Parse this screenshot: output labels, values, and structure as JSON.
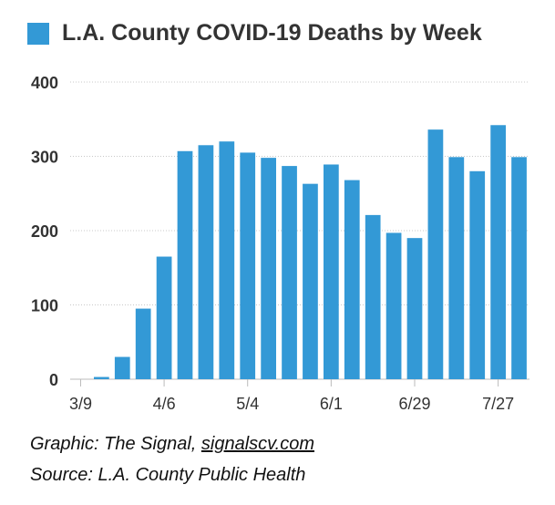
{
  "chart_data": {
    "type": "bar",
    "title": "",
    "legend": {
      "entries": [
        "L.A. County COVID-19 Deaths by Week"
      ],
      "placement": "top-left"
    },
    "series": [
      {
        "name": "L.A. County COVID-19 Deaths by Week",
        "color": "#3399d6",
        "values": [
          0,
          3,
          30,
          95,
          165,
          307,
          315,
          320,
          305,
          298,
          287,
          263,
          289,
          268,
          221,
          197,
          190,
          336,
          299,
          280,
          342,
          299
        ]
      }
    ],
    "x_tick_labels": [
      "3/9",
      "4/6",
      "5/4",
      "6/1",
      "6/29",
      "7/27"
    ],
    "x_tick_every": 4,
    "ylim": [
      0,
      400
    ],
    "yticks": [
      0,
      100,
      200,
      300,
      400
    ],
    "grid": true,
    "xlabel": "",
    "ylabel": ""
  },
  "credits": {
    "graphic_prefix": "Graphic: The Signal, ",
    "graphic_link": "signalscv.com",
    "source": "Source: L.A. County Public Health"
  }
}
